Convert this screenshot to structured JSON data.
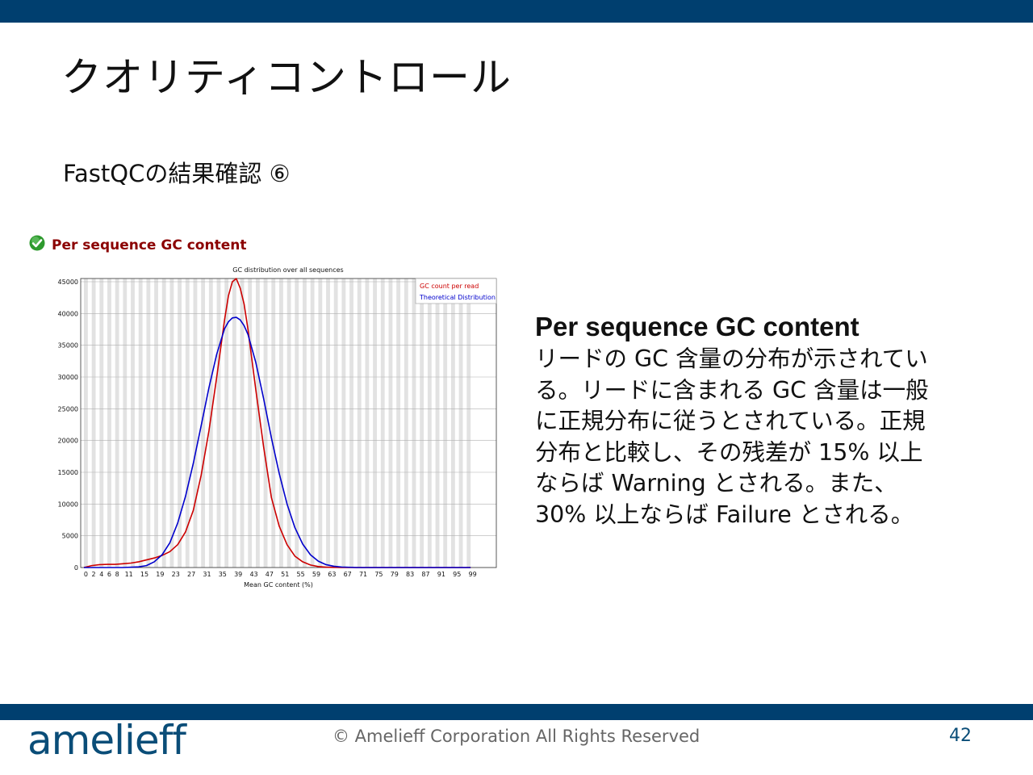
{
  "slide": {
    "title": "クオリティコントロール",
    "subtitle": "FastQCの結果確認 ⑥"
  },
  "panel": {
    "title": "Per sequence GC content",
    "status_icon": "check-icon",
    "status_color": "#2e9a2e"
  },
  "text_block": {
    "heading": "Per sequence GC content",
    "lines": [
      "リードの GC 含量の分布が示されてい",
      "る。リードに含まれる GC 含量は一般",
      "に正規分布に従うとされている。正規",
      "分布と比較し、その残差が 15% 以上",
      "ならば Warning とされる。また、",
      "30% 以上ならば Failure とされる。"
    ]
  },
  "footer": {
    "logo": "amelieff",
    "copyright": "© Amelieff Corporation All Rights Reserved",
    "page_number": "42"
  },
  "colors": {
    "bar": "#003f6f",
    "gc_count": "#cc0000",
    "theoretical": "#0000cc",
    "panel_title": "#8b0000"
  },
  "chart_data": {
    "type": "line",
    "title": "GC distribution over all sequences",
    "xlabel": "Mean GC content (%)",
    "ylabel": "",
    "xlim": [
      0,
      100
    ],
    "ylim": [
      0,
      45000
    ],
    "x_ticks": [
      "0",
      "2",
      "4",
      "6",
      "8",
      "11",
      "15",
      "19",
      "23",
      "27",
      "31",
      "35",
      "39",
      "43",
      "47",
      "51",
      "55",
      "59",
      "63",
      "67",
      "71",
      "75",
      "79",
      "83",
      "87",
      "91",
      "95",
      "99"
    ],
    "y_ticks": [
      "0",
      "5000",
      "10000",
      "15000",
      "20000",
      "25000",
      "30000",
      "35000",
      "40000",
      "45000"
    ],
    "legend": {
      "position": "top-right",
      "entries": [
        "GC count per read",
        "Theoretical Distribution"
      ]
    },
    "grid": true,
    "series": [
      {
        "name": "GC count per read",
        "color": "#cc0000",
        "x": [
          0,
          2,
          4,
          6,
          8,
          10,
          12,
          14,
          16,
          18,
          20,
          22,
          24,
          26,
          28,
          30,
          32,
          34,
          35,
          36,
          37,
          38,
          39,
          40,
          41,
          42,
          44,
          46,
          48,
          50,
          52,
          54,
          56,
          58,
          60,
          62,
          64,
          66,
          70,
          80,
          90,
          99
        ],
        "y": [
          0,
          300,
          450,
          500,
          500,
          600,
          700,
          900,
          1200,
          1500,
          1900,
          2500,
          3600,
          5600,
          9000,
          14500,
          21500,
          30000,
          34500,
          39000,
          42800,
          45000,
          45500,
          44000,
          41500,
          37500,
          28000,
          19000,
          11000,
          6500,
          3600,
          1800,
          900,
          400,
          150,
          50,
          20,
          0,
          0,
          0,
          0,
          0
        ]
      },
      {
        "name": "Theoretical Distribution",
        "color": "#0000cc",
        "x": [
          0,
          10,
          14,
          16,
          18,
          20,
          22,
          24,
          26,
          28,
          30,
          32,
          34,
          36,
          37,
          38,
          39,
          40,
          41,
          42,
          44,
          46,
          48,
          50,
          52,
          54,
          56,
          58,
          60,
          62,
          64,
          66,
          70,
          80,
          90,
          99
        ],
        "y": [
          0,
          0,
          100,
          300,
          900,
          2000,
          3900,
          7000,
          11200,
          16400,
          22300,
          28300,
          33600,
          37600,
          38700,
          39300,
          39400,
          39000,
          38100,
          36700,
          32300,
          26600,
          20400,
          14800,
          10000,
          6300,
          3700,
          2000,
          1000,
          450,
          200,
          80,
          0,
          0,
          0,
          0
        ]
      }
    ]
  }
}
